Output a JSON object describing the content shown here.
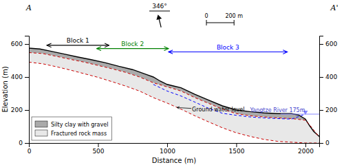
{
  "chart_data": {
    "type": "line",
    "xlabel": "Distance (m)",
    "ylabel": "Elevation (m)",
    "xlim": [
      0,
      2100
    ],
    "ylim": [
      0,
      650
    ],
    "xticks": [
      0,
      500,
      1000,
      1500,
      2000
    ],
    "yticks": [
      0,
      200,
      400,
      600
    ],
    "y2lim": [
      0,
      650
    ],
    "y2ticks": [
      0,
      200,
      400,
      600
    ],
    "grid": false,
    "legend": "lower left",
    "series": [
      {
        "name": "Silty clay with gravel",
        "type": "area",
        "color": "#aaaaaa",
        "x": [
          0,
          80,
          150,
          250,
          350,
          450,
          550,
          650,
          750,
          850,
          900,
          950,
          1000,
          1050,
          1100,
          1200,
          1300,
          1400,
          1500,
          1600,
          1700,
          1800,
          1900,
          1950,
          2000,
          2030,
          2060,
          2100
        ],
        "values": [
          575,
          570,
          558,
          540,
          522,
          505,
          487,
          465,
          445,
          415,
          400,
          375,
          355,
          345,
          335,
          295,
          260,
          225,
          200,
          190,
          182,
          178,
          178,
          170,
          145,
          105,
          70,
          40
        ],
        "x_lower": [
          0,
          100,
          200,
          300,
          400,
          500,
          600,
          700,
          800,
          900,
          1000,
          1050,
          1100,
          1200,
          1300,
          1400,
          1500,
          1600,
          1700,
          1800,
          1900,
          2000,
          2040,
          2100
        ],
        "lower": [
          548,
          542,
          525,
          507,
          490,
          470,
          450,
          428,
          400,
          365,
          340,
          328,
          315,
          275,
          240,
          205,
          178,
          165,
          158,
          152,
          148,
          138,
          100,
          35
        ]
      },
      {
        "name": "Fractured rock mass",
        "type": "area",
        "color": "#e8e8e8",
        "x": [
          0,
          100,
          200,
          300,
          400,
          500,
          600,
          700,
          800,
          900,
          1000,
          1050,
          1100,
          1200,
          1300,
          1400,
          1500,
          1600,
          1700,
          1800,
          1900,
          2000,
          2040,
          2100
        ],
        "values": [
          548,
          542,
          525,
          507,
          490,
          470,
          450,
          428,
          400,
          365,
          340,
          328,
          315,
          275,
          240,
          205,
          178,
          165,
          158,
          152,
          148,
          138,
          100,
          35
        ],
        "x_lower": [
          0,
          100,
          200,
          300,
          400,
          500,
          600,
          700,
          800,
          900,
          1000,
          1100,
          1200,
          1300,
          1400,
          1500,
          1600,
          1700,
          1800,
          1900,
          2000,
          2100
        ],
        "lower": [
          490,
          480,
          462,
          442,
          420,
          398,
          372,
          345,
          315,
          275,
          242,
          205,
          165,
          128,
          92,
          62,
          40,
          22,
          10,
          5,
          0,
          0
        ]
      },
      {
        "type": "line",
        "color": "#000000",
        "line_style": "solid",
        "x": [
          0,
          80,
          150,
          250,
          350,
          450,
          550,
          650,
          750,
          850,
          900,
          950,
          1000,
          1050,
          1100,
          1200,
          1300,
          1400,
          1500,
          1600,
          1700,
          1800,
          1900,
          1950,
          2000,
          2030,
          2060,
          2100
        ],
        "values": [
          575,
          570,
          558,
          540,
          522,
          505,
          487,
          465,
          445,
          415,
          400,
          375,
          355,
          345,
          335,
          295,
          260,
          225,
          200,
          190,
          182,
          178,
          178,
          170,
          145,
          105,
          70,
          40
        ]
      },
      {
        "type": "line",
        "color": "#cc0000",
        "line_style": "dashed",
        "x": [
          0,
          100,
          200,
          300,
          400,
          500,
          600,
          700,
          800,
          900,
          1000,
          1050,
          1100,
          1200,
          1300,
          1400,
          1500,
          1600,
          1700,
          1800,
          1900,
          2000,
          2040,
          2100
        ],
        "values": [
          548,
          542,
          525,
          507,
          490,
          470,
          450,
          428,
          400,
          365,
          340,
          328,
          315,
          275,
          240,
          205,
          178,
          165,
          158,
          152,
          148,
          138,
          100,
          35
        ]
      },
      {
        "type": "line",
        "color": "#cc0000",
        "line_style": "dashed",
        "x": [
          0,
          100,
          200,
          300,
          400,
          500,
          600,
          700,
          800,
          900,
          1000,
          1100,
          1200,
          1300,
          1400,
          1500,
          1600,
          1700,
          1800,
          1900,
          2000,
          2100
        ],
        "values": [
          490,
          480,
          462,
          442,
          420,
          398,
          372,
          345,
          315,
          275,
          242,
          205,
          165,
          128,
          92,
          62,
          40,
          22,
          10,
          5,
          0,
          0
        ]
      },
      {
        "type": "line",
        "color": "#0000ff",
        "line_style": "dashed",
        "x": [
          900,
          950,
          1000,
          1050,
          1100,
          1200,
          1300,
          1400,
          1500,
          1600,
          1700,
          1800,
          1900,
          2000
        ],
        "values": [
          355,
          335,
          315,
          300,
          285,
          248,
          210,
          180,
          168,
          158,
          152,
          148,
          145,
          175
        ]
      }
    ],
    "annotations": [
      {
        "type": "text",
        "text": "Yangtze River 175m",
        "x": 1600,
        "y": 182,
        "color": "#4444cc"
      },
      {
        "type": "arrow",
        "text": "Ground water level",
        "x": 1180,
        "y": 193,
        "arrow_x": 1070,
        "arrow_y": 215
      },
      {
        "type": "span",
        "text": "Block 1",
        "x1": 130,
        "x2": 580,
        "y": 592,
        "color": "#000000"
      },
      {
        "type": "span",
        "text": "Block 2",
        "x1": 490,
        "x2": 1010,
        "y": 572,
        "color": "#008000"
      },
      {
        "type": "span",
        "text": "Block 3",
        "x1": 1010,
        "x2": 1870,
        "y": 552,
        "color": "#0000ff"
      },
      {
        "type": "hline",
        "y": 175,
        "x1": 1820,
        "x2": 2100,
        "marker_x": 2000,
        "color": "#8888ff"
      }
    ],
    "section_labels": [
      "A",
      "A'"
    ],
    "north_arrow": {
      "value": 346,
      "label": "346°"
    },
    "scale_bar": [
      {
        "value": 0,
        "label": "0"
      },
      {
        "value": 200,
        "label": "200 m"
      }
    ]
  }
}
